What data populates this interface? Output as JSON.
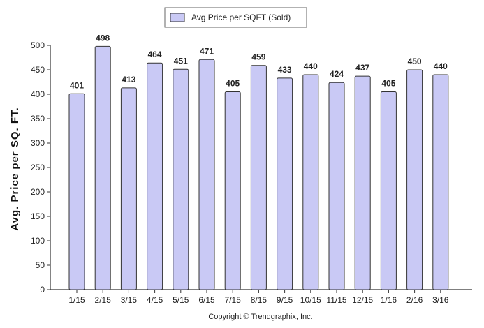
{
  "chart_data": {
    "type": "bar",
    "categories": [
      "1/15",
      "2/15",
      "3/15",
      "4/15",
      "5/15",
      "6/15",
      "7/15",
      "8/15",
      "9/15",
      "10/15",
      "11/15",
      "12/15",
      "1/16",
      "2/16",
      "3/16"
    ],
    "series": [
      {
        "name": "Avg Price per SQFT (Sold)",
        "values": [
          401,
          498,
          413,
          464,
          451,
          471,
          405,
          459,
          433,
          440,
          424,
          437,
          405,
          450,
          440
        ]
      }
    ],
    "ylabel": "Avg. Price per SQ. FT.",
    "xlabel": "",
    "ylim": [
      0,
      500
    ],
    "yticks": [
      0,
      50,
      100,
      150,
      200,
      250,
      300,
      350,
      400,
      450,
      500
    ],
    "ytick_labels": [
      "0",
      "50",
      "100",
      "150",
      "200",
      "250",
      "300",
      "350",
      "400",
      "450",
      "500"
    ],
    "grid": false,
    "legend_position": "top-center",
    "bar_color": "#c9c9f5",
    "bar_edge_color": "#333333"
  },
  "footer": {
    "copyright": "Copyright © Trendgraphix, Inc."
  }
}
